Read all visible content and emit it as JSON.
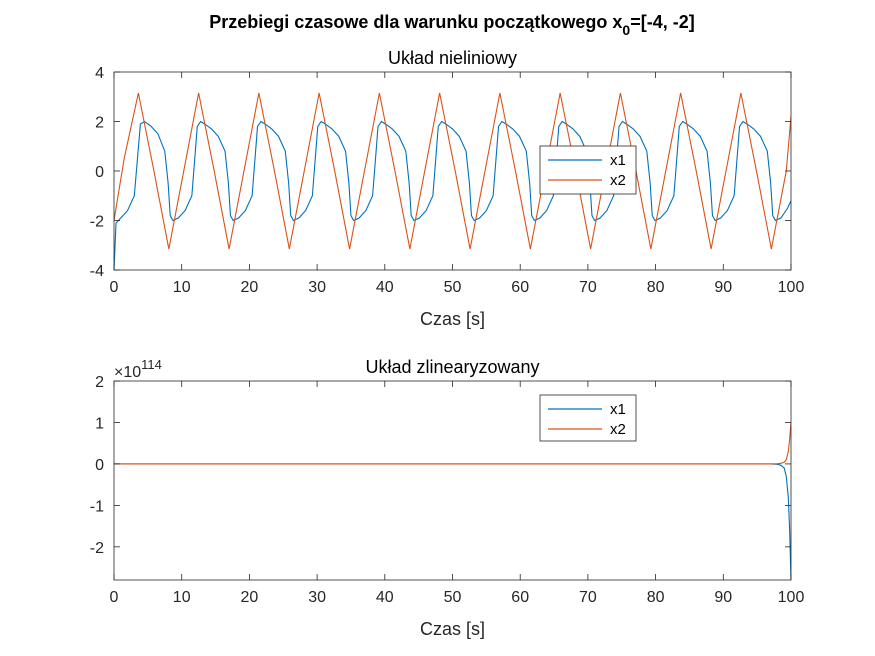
{
  "figure": {
    "suptitle_main": "Przebiegi czasowe dla warunku początkowego x",
    "suptitle_sub": "0",
    "suptitle_tail": "=[-4, -2]"
  },
  "chart_data": [
    {
      "type": "line",
      "title": "Układ nieliniowy",
      "xlabel": "Czas [s]",
      "ylabel": "",
      "xlim": [
        0,
        100
      ],
      "ylim": [
        -4,
        4
      ],
      "xticks": [
        0,
        10,
        20,
        30,
        40,
        50,
        60,
        70,
        80,
        90,
        100
      ],
      "yticks": [
        -4,
        -2,
        0,
        2,
        4
      ],
      "legend_position": "center-right",
      "grid": false,
      "series": [
        {
          "name": "x1",
          "color": "#0072BD",
          "description": "relaxation oscillation, period ≈ 8.9 s, amplitude ≈ 2, starts at -4",
          "x": [
            0,
            0.3,
            1,
            2,
            3,
            3.9,
            4.5,
            5.5,
            6.5,
            7.5,
            8.0,
            8.3,
            8.7,
            9.5,
            10.5,
            11.5,
            12.3,
            12.8,
            13.4,
            14.4,
            15.4,
            16.4,
            16.9,
            17.2,
            17.6,
            18.4,
            19.4,
            20.4,
            21.2,
            21.7,
            22.3,
            23.3,
            24.3,
            25.3,
            25.8,
            26.1,
            26.5,
            27.3,
            28.3,
            29.3,
            30.1,
            30.6,
            31.2,
            32.2,
            33.2,
            34.2,
            34.7,
            35.0,
            35.4,
            36.2,
            37.2,
            38.2,
            39.0,
            39.5,
            40.1,
            41.1,
            42.1,
            43.1,
            43.6,
            43.9,
            44.3,
            45.1,
            46.1,
            47.1,
            47.9,
            48.4,
            49.0,
            50.0,
            51.0,
            52.0,
            52.5,
            52.8,
            53.2,
            54.0,
            55.0,
            56.0,
            56.8,
            57.3,
            57.9,
            58.9,
            59.9,
            60.9,
            61.4,
            61.7,
            62.1,
            62.9,
            63.9,
            64.9,
            65.7,
            66.2,
            66.8,
            67.8,
            68.8,
            69.8,
            70.3,
            70.6,
            71.0,
            71.8,
            72.8,
            73.8,
            74.6,
            75.1,
            75.7,
            76.7,
            77.7,
            78.7,
            79.2,
            79.5,
            79.9,
            80.7,
            81.7,
            82.7,
            83.5,
            84.0,
            84.6,
            85.6,
            86.6,
            87.6,
            88.1,
            88.4,
            88.8,
            89.6,
            90.6,
            91.6,
            92.4,
            92.9,
            93.5,
            94.5,
            95.5,
            96.5,
            97.0,
            97.3,
            97.7,
            98.5,
            99.5,
            100
          ],
          "y": [
            -4,
            -2.1,
            -1.9,
            -1.6,
            -1.0,
            1.9,
            2.0,
            1.8,
            1.5,
            0.8,
            -0.5,
            -1.8,
            -2.0,
            -1.9,
            -1.6,
            -1.0,
            1.8,
            2.0,
            1.9,
            1.7,
            1.4,
            0.8,
            -0.5,
            -1.8,
            -2.0,
            -1.9,
            -1.6,
            -1.0,
            1.8,
            2.0,
            1.9,
            1.7,
            1.4,
            0.8,
            -0.5,
            -1.8,
            -2.0,
            -1.9,
            -1.6,
            -1.0,
            1.8,
            2.0,
            1.9,
            1.7,
            1.4,
            0.8,
            -0.5,
            -1.8,
            -2.0,
            -1.9,
            -1.6,
            -1.0,
            1.8,
            2.0,
            1.9,
            1.7,
            1.4,
            0.8,
            -0.5,
            -1.8,
            -2.0,
            -1.9,
            -1.6,
            -1.0,
            1.8,
            2.0,
            1.9,
            1.7,
            1.4,
            0.8,
            -0.5,
            -1.8,
            -2.0,
            -1.9,
            -1.6,
            -1.0,
            1.8,
            2.0,
            1.9,
            1.7,
            1.4,
            0.8,
            -0.5,
            -1.8,
            -2.0,
            -1.9,
            -1.6,
            -1.0,
            1.8,
            2.0,
            1.9,
            1.7,
            1.4,
            0.8,
            -0.5,
            -1.8,
            -2.0,
            -1.9,
            -1.6,
            -1.0,
            1.8,
            2.0,
            1.9,
            1.7,
            1.4,
            0.8,
            -0.5,
            -1.8,
            -2.0,
            -1.9,
            -1.6,
            -1.0,
            1.8,
            2.0,
            1.9,
            1.7,
            1.4,
            0.8,
            -0.5,
            -1.8,
            -2.0,
            -1.9,
            -1.6,
            -1.0,
            1.8,
            2.0,
            1.9,
            1.7,
            1.4,
            0.8,
            -0.5,
            -1.8,
            -2.0,
            -1.9,
            -1.5,
            -1.2
          ]
        },
        {
          "name": "x2",
          "color": "#D95319",
          "x": [
            0,
            1.5,
            3.6,
            5.9,
            8.1,
            10.3,
            12.5,
            14.8,
            17.0,
            19.2,
            21.4,
            23.7,
            25.9,
            28.1,
            30.3,
            32.6,
            34.8,
            37.0,
            39.2,
            41.5,
            43.7,
            45.9,
            48.1,
            50.4,
            52.6,
            54.8,
            57.0,
            59.3,
            61.5,
            63.7,
            65.9,
            68.2,
            70.4,
            72.6,
            74.8,
            77.1,
            79.3,
            81.5,
            83.7,
            86.0,
            88.2,
            90.4,
            92.6,
            94.9,
            97.1,
            99.3,
            100
          ],
          "y": [
            -2,
            0.5,
            3.15,
            0,
            -3.15,
            0,
            3.15,
            0,
            -3.15,
            0,
            3.15,
            0,
            -3.15,
            0,
            3.15,
            0,
            -3.15,
            0,
            3.15,
            0,
            -3.15,
            0,
            3.15,
            0,
            -3.15,
            0,
            3.15,
            0,
            -3.15,
            0,
            3.15,
            0,
            -3.15,
            0,
            3.15,
            0,
            -3.15,
            0,
            3.15,
            0,
            -3.15,
            0,
            3.15,
            0,
            -3.15,
            0,
            2.2
          ]
        }
      ]
    },
    {
      "type": "line",
      "title": "Układ zlinearyzowany",
      "xlabel": "Czas [s]",
      "ylabel": "",
      "xlim": [
        0,
        100
      ],
      "ylim": [
        -2.8,
        2
      ],
      "y_exponent_base": "×10",
      "y_exponent": "114",
      "xticks": [
        0,
        10,
        20,
        30,
        40,
        50,
        60,
        70,
        80,
        90,
        100
      ],
      "yticks": [
        -2,
        -1,
        0,
        1,
        2
      ],
      "legend_position": "top-right",
      "grid": false,
      "series": [
        {
          "name": "x1",
          "color": "#0072BD",
          "x": [
            0,
            97,
            98,
            98.5,
            99,
            99.3,
            99.6,
            99.8,
            100
          ],
          "y": [
            0,
            0,
            -0.01,
            -0.03,
            -0.1,
            -0.3,
            -0.8,
            -1.6,
            -2.8
          ]
        },
        {
          "name": "x2",
          "color": "#D95319",
          "x": [
            0,
            97,
            98,
            98.5,
            99,
            99.3,
            99.6,
            99.8,
            100
          ],
          "y": [
            0,
            0,
            0.005,
            0.015,
            0.04,
            0.1,
            0.3,
            0.6,
            1.0
          ]
        }
      ]
    }
  ]
}
